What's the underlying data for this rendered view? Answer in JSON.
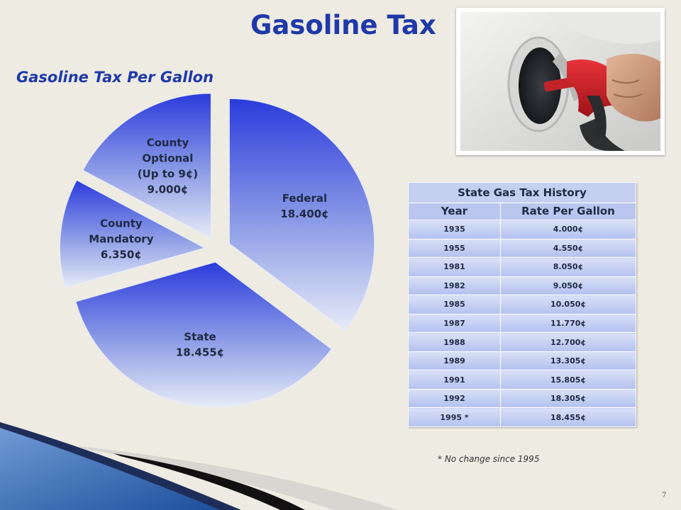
{
  "page": {
    "title": "Gasoline Tax",
    "subtitle": "Gasoline Tax Per Gallon",
    "page_number": "7"
  },
  "chart_data": {
    "type": "pie",
    "title": "Gasoline Tax Per Gallon",
    "unit": "¢",
    "slices": [
      {
        "name": "Federal",
        "value": 18.4,
        "label_lines": [
          "Federal",
          "18.400¢"
        ]
      },
      {
        "name": "State",
        "value": 18.455,
        "label_lines": [
          "State",
          "18.455¢"
        ]
      },
      {
        "name": "County Mandatory",
        "value": 6.35,
        "label_lines": [
          "County",
          "Mandatory",
          "6.350¢"
        ]
      },
      {
        "name": "County Optional",
        "value": 9.0,
        "label_lines": [
          "County",
          "Optional",
          "(Up to 9¢)",
          "9.000¢"
        ]
      }
    ]
  },
  "table": {
    "caption": "State Gas Tax History",
    "headers": [
      "Year",
      "Rate Per Gallon"
    ],
    "rows": [
      [
        "1935",
        "4.000¢"
      ],
      [
        "1955",
        "4.550¢"
      ],
      [
        "1981",
        "8.050¢"
      ],
      [
        "1982",
        "9.050¢"
      ],
      [
        "1985",
        "10.050¢"
      ],
      [
        "1987",
        "11.770¢"
      ],
      [
        "1988",
        "12.700¢"
      ],
      [
        "1989",
        "13.305¢"
      ],
      [
        "1991",
        "15.805¢"
      ],
      [
        "1992",
        "18.305¢"
      ],
      [
        "1995 *",
        "18.455¢"
      ]
    ]
  },
  "footnote": "* No change since 1995",
  "colors": {
    "title": "#1f39a8",
    "pie_dark": "#2a3bdc",
    "pie_light": "#e6ebf7",
    "table_header": "#c5cff0",
    "background": "#eeebe2"
  },
  "photo": {
    "subject": "fuel-nozzle-refueling-car",
    "alt": "Red fuel nozzle inserted into a car's gas tank"
  }
}
